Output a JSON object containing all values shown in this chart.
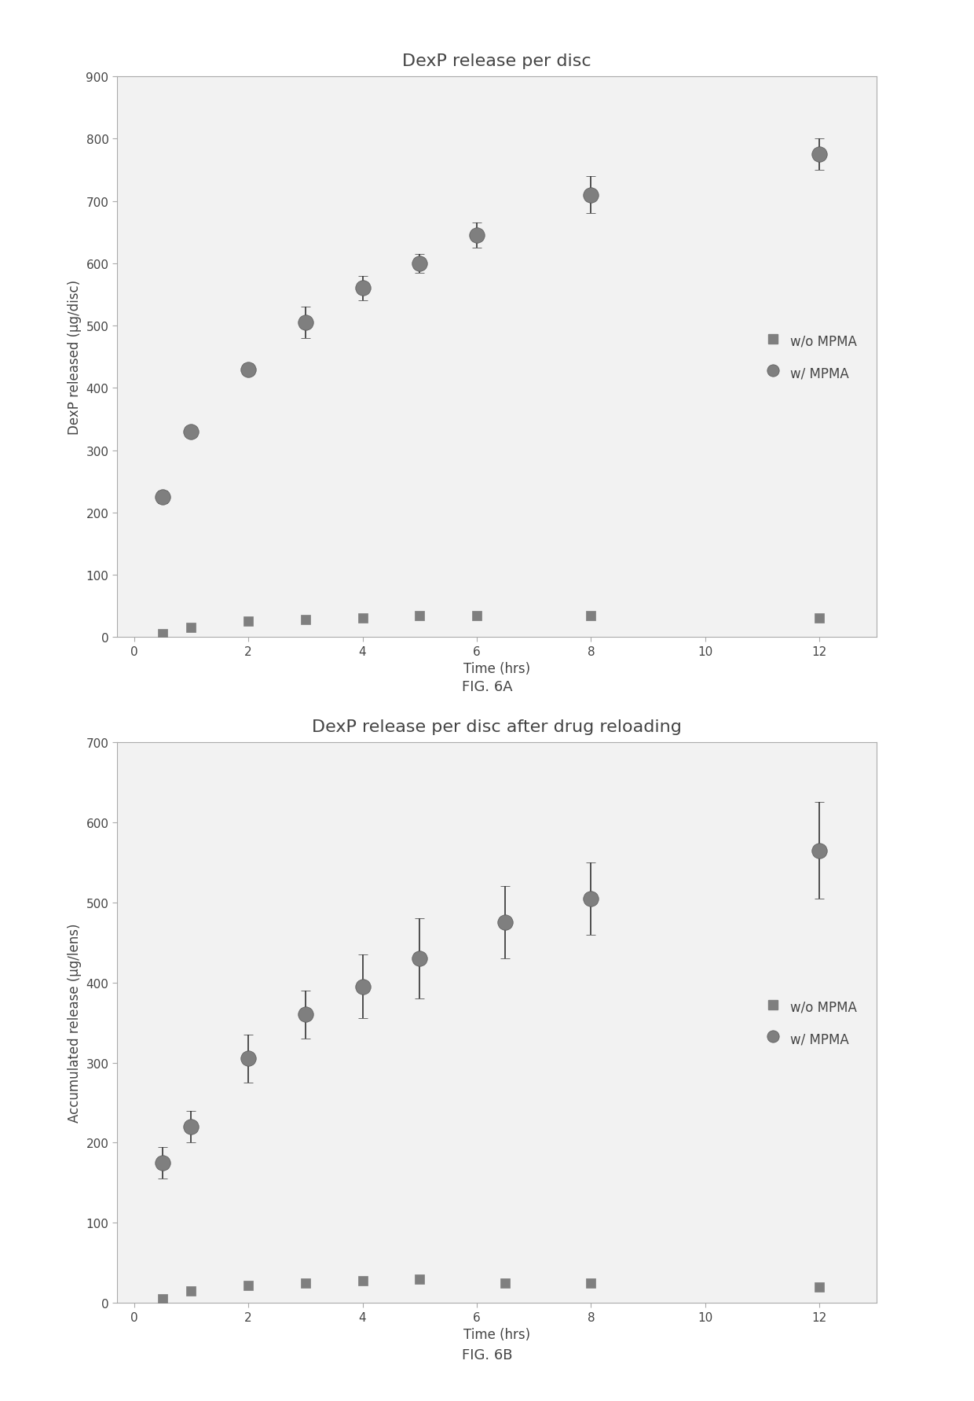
{
  "fig6a": {
    "title": "DexP release per disc",
    "ylabel": "DexP released (μg/disc)",
    "xlabel": "Time (hrs)",
    "ylim": [
      0,
      900
    ],
    "xlim": [
      -0.3,
      13
    ],
    "xticks": [
      0,
      2,
      4,
      6,
      8,
      10,
      12
    ],
    "yticks": [
      0,
      100,
      200,
      300,
      400,
      500,
      600,
      700,
      800,
      900
    ],
    "mpma_x": [
      0.5,
      1,
      2,
      3,
      4,
      5,
      6,
      8,
      12
    ],
    "mpma_y": [
      225,
      330,
      430,
      505,
      560,
      600,
      645,
      710,
      775
    ],
    "mpma_yerr": [
      10,
      8,
      10,
      25,
      20,
      15,
      20,
      30,
      25
    ],
    "no_mpma_x": [
      0.5,
      1,
      2,
      3,
      4,
      5,
      6,
      8,
      12
    ],
    "no_mpma_y": [
      5,
      15,
      25,
      28,
      30,
      35,
      35,
      35,
      30
    ],
    "no_mpma_yerr": [
      2,
      3,
      3,
      3,
      3,
      4,
      4,
      4,
      4
    ],
    "legend_labels": [
      "w/o MPMA",
      "w/ MPMA"
    ],
    "figcaption": "FIG. 6A"
  },
  "fig6b": {
    "title": "DexP release per disc after drug reloading",
    "ylabel": "Accumulated release (μg/lens)",
    "xlabel": "Time (hrs)",
    "ylim": [
      0,
      700
    ],
    "xlim": [
      -0.3,
      13
    ],
    "xticks": [
      0,
      2,
      4,
      6,
      8,
      10,
      12
    ],
    "yticks": [
      0,
      100,
      200,
      300,
      400,
      500,
      600,
      700
    ],
    "mpma_x": [
      0.5,
      1,
      2,
      3,
      4,
      5,
      6.5,
      8,
      12
    ],
    "mpma_y": [
      175,
      220,
      305,
      360,
      395,
      430,
      475,
      505,
      565
    ],
    "mpma_yerr": [
      20,
      20,
      30,
      30,
      40,
      50,
      45,
      45,
      60
    ],
    "no_mpma_x": [
      0.5,
      1,
      2,
      3,
      4,
      5,
      6.5,
      8,
      12
    ],
    "no_mpma_y": [
      5,
      15,
      22,
      25,
      28,
      30,
      25,
      25,
      20
    ],
    "no_mpma_yerr": [
      2,
      3,
      3,
      3,
      3,
      4,
      4,
      4,
      4
    ],
    "legend_labels": [
      "w/o MPMA",
      "w/ MPMA"
    ],
    "figcaption": "FIG. 6B"
  },
  "marker_color": "#7f7f7f",
  "square_color": "#7f7f7f",
  "bg_color": "#f2f2f2",
  "text_color": "#444444",
  "spine_color": "#aaaaaa",
  "title_fontsize": 16,
  "label_fontsize": 12,
  "tick_fontsize": 11,
  "caption_fontsize": 13
}
